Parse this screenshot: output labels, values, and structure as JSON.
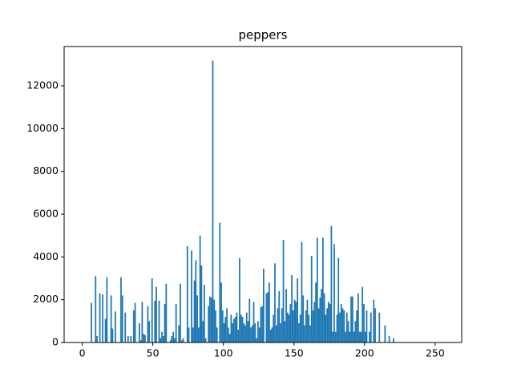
{
  "chart_data": {
    "type": "histogram",
    "title": "peppers",
    "color": "#1f77b4",
    "bins": [
      0,
      1,
      2,
      3,
      4,
      5,
      6,
      7,
      8,
      9,
      10,
      11,
      12,
      13,
      14,
      15,
      16,
      17,
      18,
      19,
      20,
      21,
      22,
      23,
      24,
      25,
      26,
      27,
      28,
      29,
      30,
      31,
      32,
      33,
      34,
      35,
      36,
      37,
      38,
      39,
      40,
      41,
      42,
      43,
      44,
      45,
      46,
      47,
      48,
      49,
      50,
      51,
      52,
      53,
      54,
      55,
      56,
      57,
      58,
      59,
      60,
      61,
      62,
      63,
      64,
      65,
      66,
      67,
      68,
      69,
      70,
      71,
      72,
      73,
      74,
      75,
      76,
      77,
      78,
      79,
      80,
      81,
      82,
      83,
      84,
      85,
      86,
      87,
      88,
      89,
      90,
      91,
      92,
      93,
      94,
      95,
      96,
      97,
      98,
      99,
      100,
      101,
      102,
      103,
      104,
      105,
      106,
      107,
      108,
      109,
      110,
      111,
      112,
      113,
      114,
      115,
      116,
      117,
      118,
      119,
      120,
      121,
      122,
      123,
      124,
      125,
      126,
      127,
      128,
      129,
      130,
      131,
      132,
      133,
      134,
      135,
      136,
      137,
      138,
      139,
      140,
      141,
      142,
      143,
      144,
      145,
      146,
      147,
      148,
      149,
      150,
      151,
      152,
      153,
      154,
      155,
      156,
      157,
      158,
      159,
      160,
      161,
      162,
      163,
      164,
      165,
      166,
      167,
      168,
      169,
      170,
      171,
      172,
      173,
      174,
      175,
      176,
      177,
      178,
      179,
      180,
      181,
      182,
      183,
      184,
      185,
      186,
      187,
      188,
      189,
      190,
      191,
      192,
      193,
      194,
      195,
      196,
      197,
      198,
      199,
      200,
      201,
      202,
      203,
      204,
      205,
      206,
      207,
      208,
      209,
      210,
      211,
      212,
      213,
      214,
      215,
      216,
      217,
      218,
      219,
      220,
      221,
      222,
      223,
      224,
      225,
      226,
      227,
      228,
      229,
      230,
      231,
      232,
      233,
      234,
      235,
      236,
      237,
      238,
      239,
      240,
      241,
      242,
      243,
      244,
      245,
      246,
      247,
      248,
      249,
      250,
      251,
      252,
      253,
      254,
      255,
      256
    ],
    "values": [
      0,
      0,
      0,
      0,
      0,
      0,
      1850,
      0,
      0,
      3100,
      300,
      0,
      2300,
      0,
      2250,
      0,
      1100,
      3050,
      0,
      0,
      2200,
      650,
      0,
      1450,
      0,
      0,
      0,
      3050,
      2200,
      0,
      1400,
      0,
      300,
      0,
      300,
      0,
      1500,
      1850,
      0,
      0,
      900,
      100,
      1900,
      400,
      350,
      0,
      1700,
      1000,
      0,
      3000,
      0,
      1950,
      2600,
      0,
      1950,
      200,
      500,
      300,
      1800,
      2750,
      0,
      0,
      100,
      300,
      500,
      200,
      1800,
      0,
      800,
      2750,
      100,
      200,
      0,
      0,
      4500,
      700,
      0,
      4300,
      700,
      2900,
      3850,
      2200,
      700,
      5000,
      3600,
      1000,
      2700,
      200,
      0,
      1700,
      2150,
      2100,
      13180,
      2000,
      1500,
      700,
      0,
      5600,
      2800,
      1500,
      900,
      1200,
      1600,
      700,
      400,
      1300,
      900,
      1100,
      1200,
      1400,
      600,
      3950,
      1300,
      1200,
      900,
      800,
      1400,
      1000,
      2050,
      700,
      800,
      1900,
      900,
      200,
      1000,
      700,
      1650,
      1700,
      3450,
      0,
      2300,
      2350,
      2800,
      600,
      700,
      1300,
      3700,
      800,
      1600,
      2400,
      900,
      1600,
      4800,
      1000,
      2500,
      1400,
      1300,
      1800,
      3150,
      1500,
      2000,
      1900,
      3000,
      900,
      1300,
      4700,
      2200,
      800,
      1500,
      2000,
      1300,
      800,
      4050,
      1500,
      1900,
      2800,
      4900,
      1600,
      2100,
      2500,
      4900,
      2300,
      1300,
      1600,
      1900,
      1800,
      5450,
      500,
      4600,
      500,
      1300,
      3950,
      1400,
      1800,
      1600,
      1500,
      500,
      1400,
      1000,
      500,
      2150,
      2150,
      500,
      1000,
      1500,
      2300,
      500,
      500,
      2600,
      1800,
      500,
      1500,
      0,
      500,
      1400,
      0,
      2000,
      1600,
      0,
      0,
      1400,
      0,
      0,
      0,
      800,
      0,
      0,
      300,
      0,
      0,
      200,
      0,
      0,
      0,
      0,
      0,
      0,
      0,
      0,
      0,
      0,
      0,
      0,
      0,
      0,
      0,
      0,
      0,
      0,
      0,
      0,
      0,
      0,
      0,
      0,
      0,
      0,
      0,
      0,
      0,
      0,
      0,
      0,
      0,
      0,
      0
    ],
    "xlim": [
      -12.8,
      268.8
    ],
    "xticks": [
      0,
      50,
      100,
      150,
      200,
      250
    ],
    "ylim": [
      0,
      13839
    ],
    "yticks": [
      0,
      2000,
      4000,
      6000,
      8000,
      10000,
      12000
    ]
  }
}
